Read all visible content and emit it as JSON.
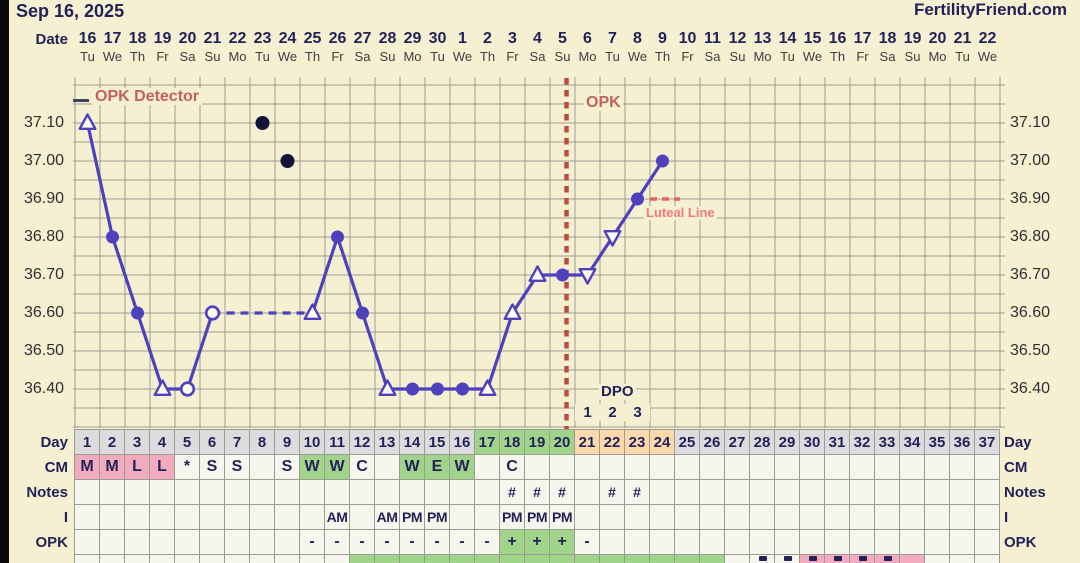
{
  "header": {
    "date_title": "Sep 16, 2025",
    "brand": "FertilityFriend.com"
  },
  "labels": {
    "date": "Date"
  },
  "chart_data": {
    "type": "line",
    "x_dates": [
      "16",
      "17",
      "18",
      "19",
      "20",
      "21",
      "22",
      "23",
      "24",
      "25",
      "26",
      "27",
      "28",
      "29",
      "30",
      "1",
      "2",
      "3",
      "4",
      "5",
      "6",
      "7",
      "8",
      "9",
      "10",
      "11",
      "12",
      "13",
      "14",
      "15",
      "16",
      "17",
      "18",
      "19",
      "20",
      "21",
      "22"
    ],
    "x_weekdays": [
      "Tu",
      "We",
      "Th",
      "Fr",
      "Sa",
      "Su",
      "Mo",
      "Tu",
      "We",
      "Th",
      "Fr",
      "Sa",
      "Su",
      "Mo",
      "Tu",
      "We",
      "Th",
      "Fr",
      "Sa",
      "Su",
      "Mo",
      "Tu",
      "We",
      "Th",
      "Fr",
      "Sa",
      "Su",
      "Mo",
      "Tu",
      "We",
      "Th",
      "Fr",
      "Sa",
      "Su",
      "Mo",
      "Tu",
      "We"
    ],
    "cycle_days": [
      "1",
      "2",
      "3",
      "4",
      "5",
      "6",
      "7",
      "8",
      "9",
      "10",
      "11",
      "12",
      "13",
      "14",
      "15",
      "16",
      "17",
      "18",
      "19",
      "20",
      "21",
      "22",
      "23",
      "24",
      "25",
      "26",
      "27",
      "28",
      "29",
      "30",
      "31",
      "32",
      "33",
      "34",
      "35",
      "36",
      "37"
    ],
    "y_ticks": [
      "37.10",
      "37.00",
      "36.90",
      "36.80",
      "36.70",
      "36.60",
      "36.50",
      "36.40"
    ],
    "ylim": [
      36.3,
      37.2
    ],
    "y_step": 0.05,
    "grid": true,
    "temps": [
      {
        "day": 1,
        "temp": 37.1,
        "marker": "triangle_open"
      },
      {
        "day": 2,
        "temp": 36.8,
        "marker": "dot"
      },
      {
        "day": 3,
        "temp": 36.6,
        "marker": "dot"
      },
      {
        "day": 4,
        "temp": 36.4,
        "marker": "triangle_open"
      },
      {
        "day": 5,
        "temp": 36.4,
        "marker": "circle_open"
      },
      {
        "day": 6,
        "temp": 36.6,
        "marker": "circle_open"
      },
      {
        "day": 10,
        "temp": 36.6,
        "marker": "triangle_open"
      },
      {
        "day": 11,
        "temp": 36.8,
        "marker": "dot"
      },
      {
        "day": 12,
        "temp": 36.6,
        "marker": "dot"
      },
      {
        "day": 13,
        "temp": 36.4,
        "marker": "triangle_open"
      },
      {
        "day": 14,
        "temp": 36.4,
        "marker": "dot"
      },
      {
        "day": 15,
        "temp": 36.4,
        "marker": "dot"
      },
      {
        "day": 16,
        "temp": 36.4,
        "marker": "dot"
      },
      {
        "day": 17,
        "temp": 36.4,
        "marker": "triangle_open"
      },
      {
        "day": 18,
        "temp": 36.6,
        "marker": "triangle_open"
      },
      {
        "day": 19,
        "temp": 36.7,
        "marker": "triangle_open"
      },
      {
        "day": 20,
        "temp": 36.7,
        "marker": "dot"
      },
      {
        "day": 21,
        "temp": 36.7,
        "marker": "triangle_down_open"
      },
      {
        "day": 22,
        "temp": 36.8,
        "marker": "triangle_down_open"
      },
      {
        "day": 23,
        "temp": 36.9,
        "marker": "dot"
      },
      {
        "day": 24,
        "temp": 37.0,
        "marker": "dot"
      }
    ],
    "discarded_temps": [
      {
        "day": 8,
        "temp": 37.1
      },
      {
        "day": 9,
        "temp": 37.0
      }
    ],
    "gap_dashed": {
      "from_day": 6,
      "to_day": 10
    },
    "ovulation_opk_line_day": 20,
    "luteal_line": {
      "temp": 36.9,
      "label": "Luteal Line"
    },
    "dpo": {
      "label": "DPO",
      "start_day": 21,
      "numbers": [
        "1",
        "2",
        "3"
      ]
    },
    "annotations": {
      "opk_detector": "OPK Detector",
      "opk": "OPK"
    }
  },
  "table": {
    "rows": [
      {
        "name": "day",
        "label": "Day",
        "green": [
          17,
          18,
          19,
          20
        ],
        "peach": [
          21,
          22,
          23,
          24
        ],
        "default_bg": "gray",
        "values": {}
      },
      {
        "name": "cm",
        "label": "CM",
        "pink": [
          1,
          2,
          3,
          4
        ],
        "green": [
          10,
          11,
          14,
          15,
          16
        ],
        "values": {
          "1": "M",
          "2": "M",
          "3": "L",
          "4": "L",
          "5": "*",
          "6": "S",
          "7": "S",
          "9": "S",
          "10": "W",
          "11": "W",
          "12": "C",
          "14": "W",
          "15": "E",
          "16": "W",
          "18": "C"
        }
      },
      {
        "name": "notes",
        "label": "Notes",
        "values": {
          "18": "#",
          "19": "#",
          "20": "#",
          "22": "#",
          "23": "#"
        }
      },
      {
        "name": "i",
        "label": "I",
        "values": {
          "11": "AM",
          "13": "AM",
          "14": "PM",
          "15": "PM",
          "18": "PM",
          "19": "PM",
          "20": "PM"
        }
      },
      {
        "name": "opk",
        "label": "OPK",
        "green": [
          18,
          19,
          20
        ],
        "values": {
          "10": "-",
          "11": "-",
          "12": "-",
          "13": "-",
          "14": "-",
          "15": "-",
          "16": "-",
          "17": "-",
          "18": "+",
          "19": "+",
          "20": "+",
          "21": "-"
        }
      }
    ],
    "partial_row": {
      "green_from": 12,
      "green_to": 26,
      "pink_from": 30,
      "pink_to": 34,
      "mark_days": [
        28,
        29,
        30,
        31,
        32,
        33
      ]
    }
  },
  "colors": {
    "page_bg": "#f6f0d2",
    "navy": "#232258",
    "dow_gray": "#3d3d3d",
    "grid": "#9c9c90",
    "line": "#4f41bd",
    "marker_open_fill": "#fcfcf5",
    "discarded": "#131339",
    "red": "#bf4a42",
    "red_soft": "#c4625a",
    "salmon": "#ee7c7c",
    "luteal_red": "#e8635e",
    "cell_bg": "#f6f6ee",
    "cell_gray": "#dcdcdf",
    "cell_green": "#9fd48a",
    "cell_peach": "#fbd9ac",
    "cell_pink": "#f2abbe",
    "left_strip": "#0a0a0a"
  }
}
